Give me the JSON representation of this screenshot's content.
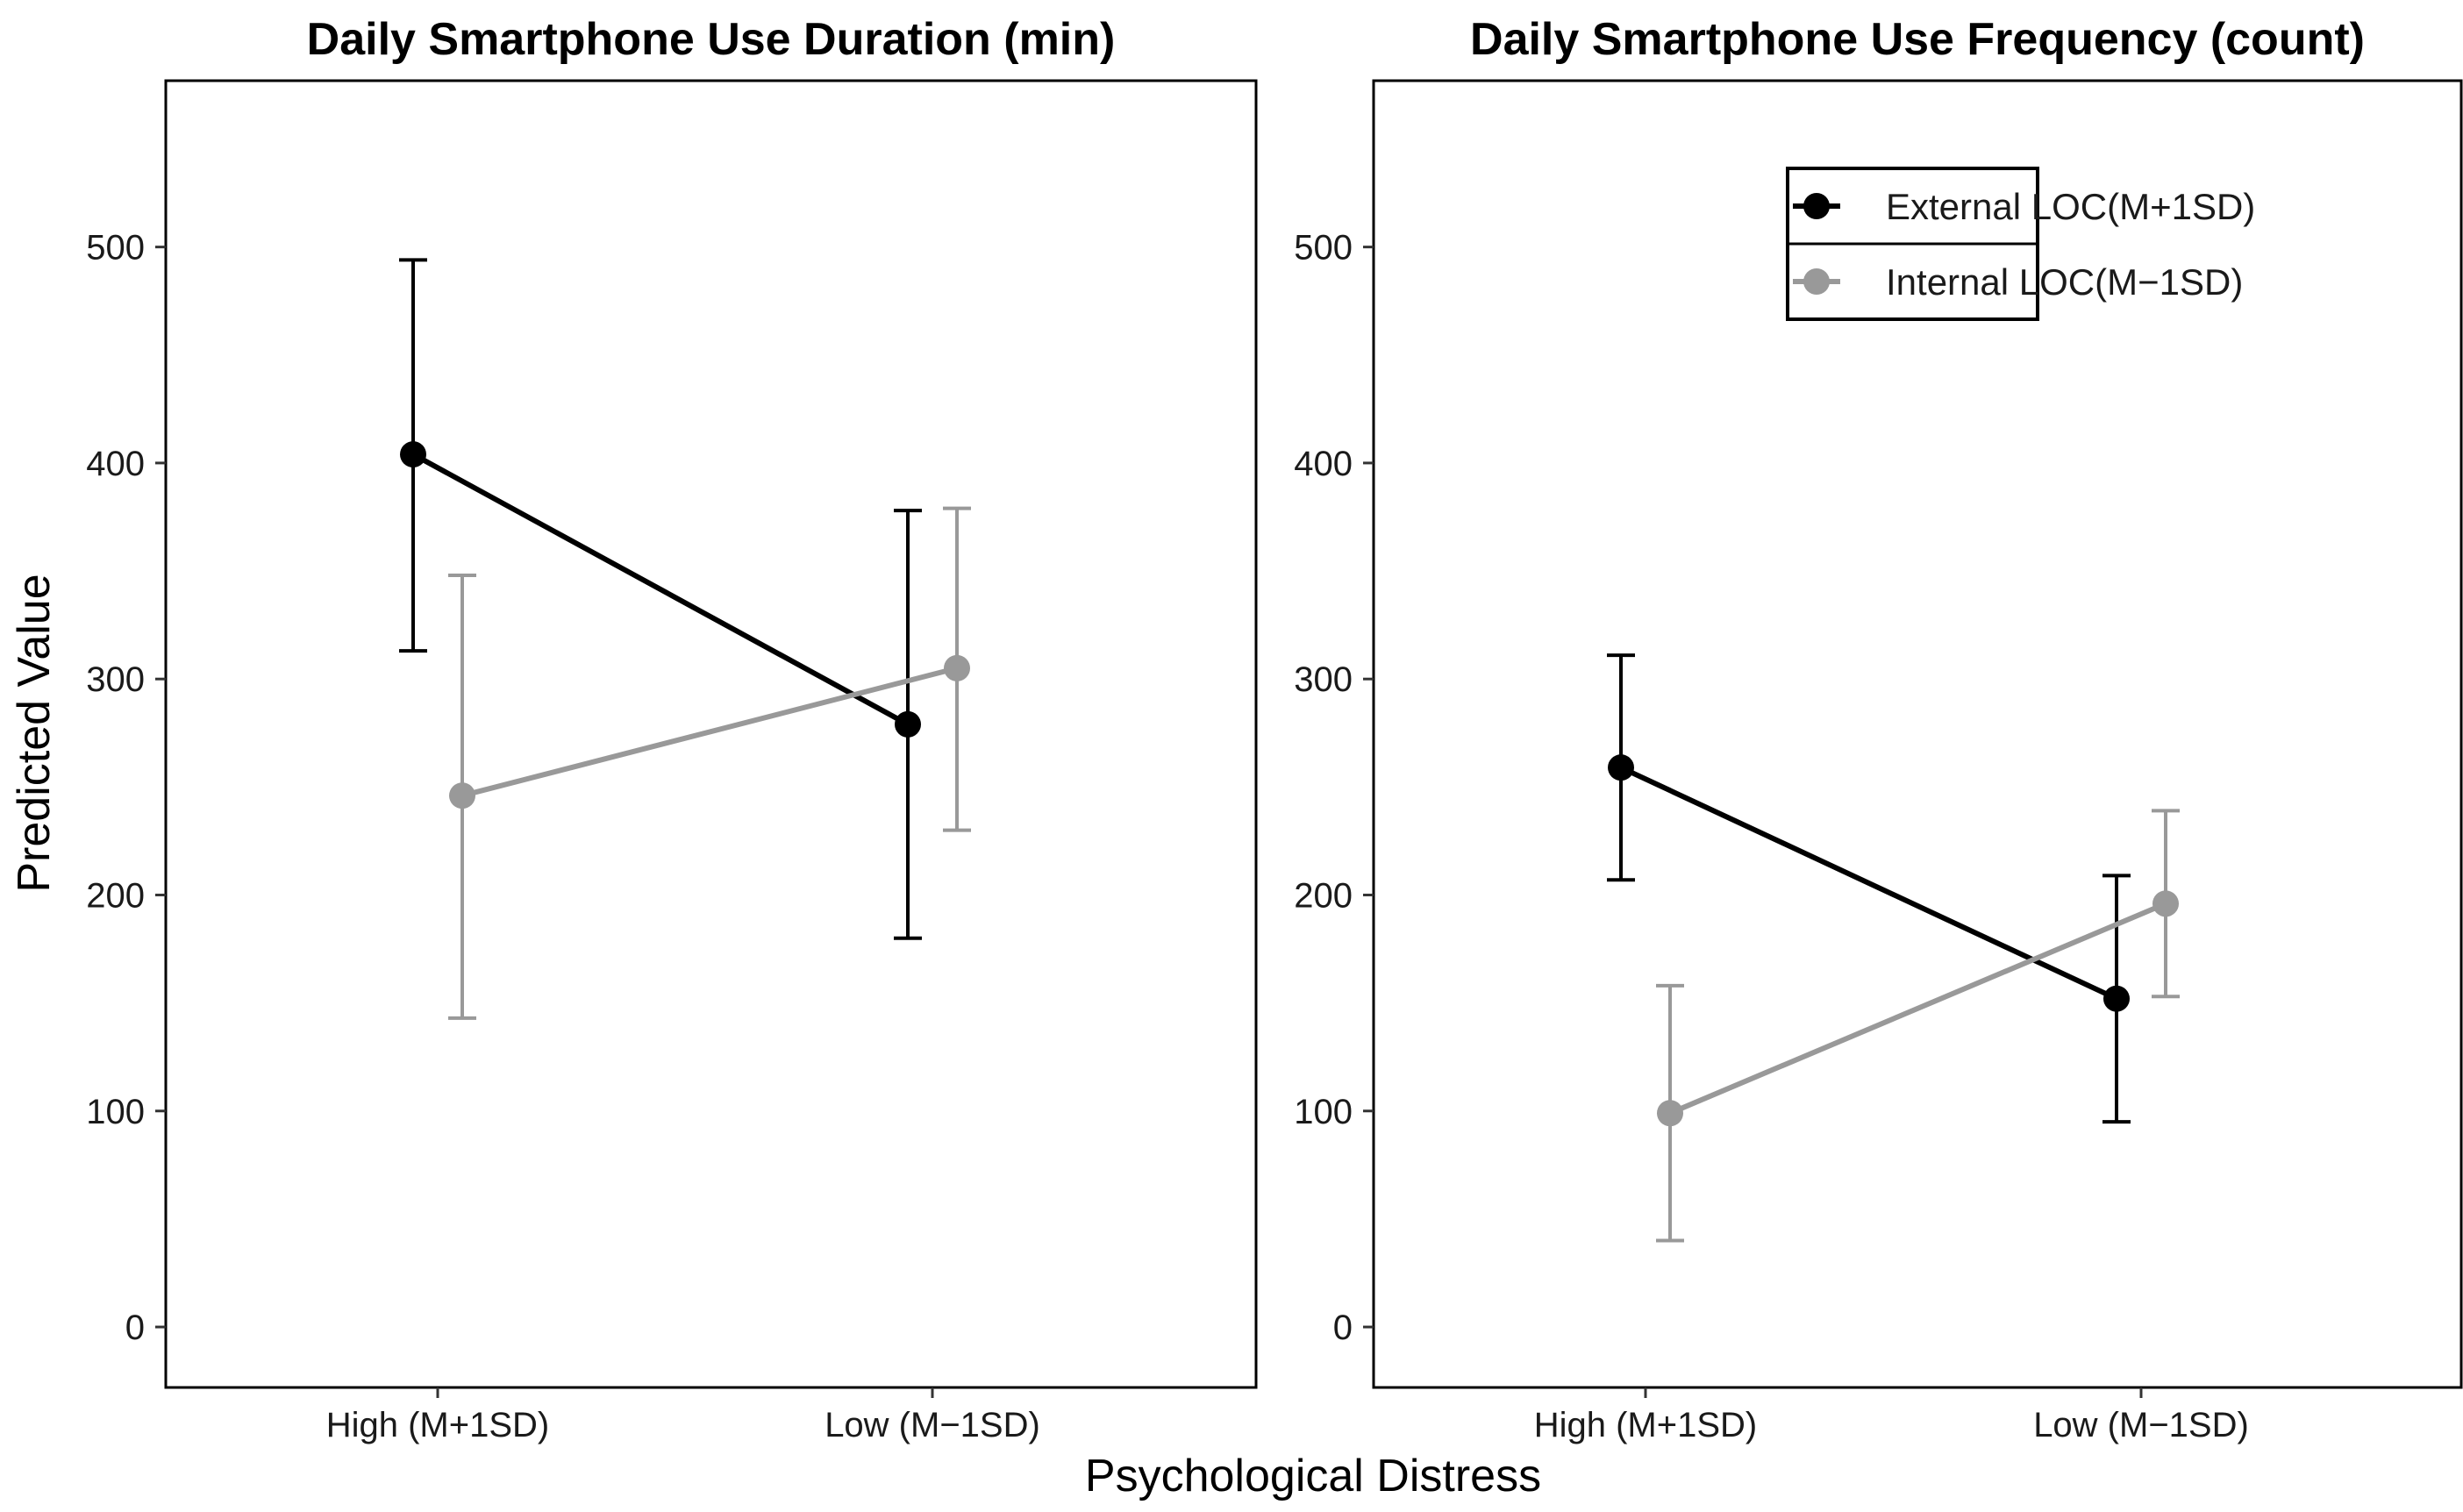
{
  "chart_data": [
    {
      "type": "line",
      "title": "Daily Smartphone Use Duration (min)",
      "categories": [
        "High (M+1SD)",
        "Low (M−1SD)"
      ],
      "ylabel": "Predicted Value",
      "ylim": [
        -28,
        577
      ],
      "yticks": [
        "0",
        "100",
        "200",
        "300",
        "400",
        "500"
      ],
      "series": [
        {
          "name": "External LOC(M+1SD)",
          "color": "#000000",
          "values": [
            404,
            279
          ],
          "lower": [
            313,
            180
          ],
          "upper": [
            494,
            378
          ]
        },
        {
          "name": "Internal LOC(M−1SD)",
          "color": "#999999",
          "values": [
            246,
            305
          ],
          "lower": [
            143,
            230
          ],
          "upper": [
            348,
            379
          ]
        }
      ]
    },
    {
      "type": "line",
      "title": "Daily Smartphone Use Frequency (count)",
      "categories": [
        "High (M+1SD)",
        "Low (M−1SD)"
      ],
      "ylabel": "",
      "ylim": [
        -28,
        577
      ],
      "yticks": [
        "0",
        "100",
        "200",
        "300",
        "400",
        "500"
      ],
      "series": [
        {
          "name": "External LOC(M+1SD)",
          "color": "#000000",
          "values": [
            259,
            152
          ],
          "lower": [
            207,
            95
          ],
          "upper": [
            311,
            209
          ]
        },
        {
          "name": "Internal LOC(M−1SD)",
          "color": "#999999",
          "values": [
            99,
            196
          ],
          "lower": [
            40,
            153
          ],
          "upper": [
            158,
            239
          ]
        }
      ]
    }
  ],
  "shared": {
    "xlabel": "Psychological Distress",
    "ylabel": "Predicted Value",
    "legend_position": "top-right of right panel"
  }
}
